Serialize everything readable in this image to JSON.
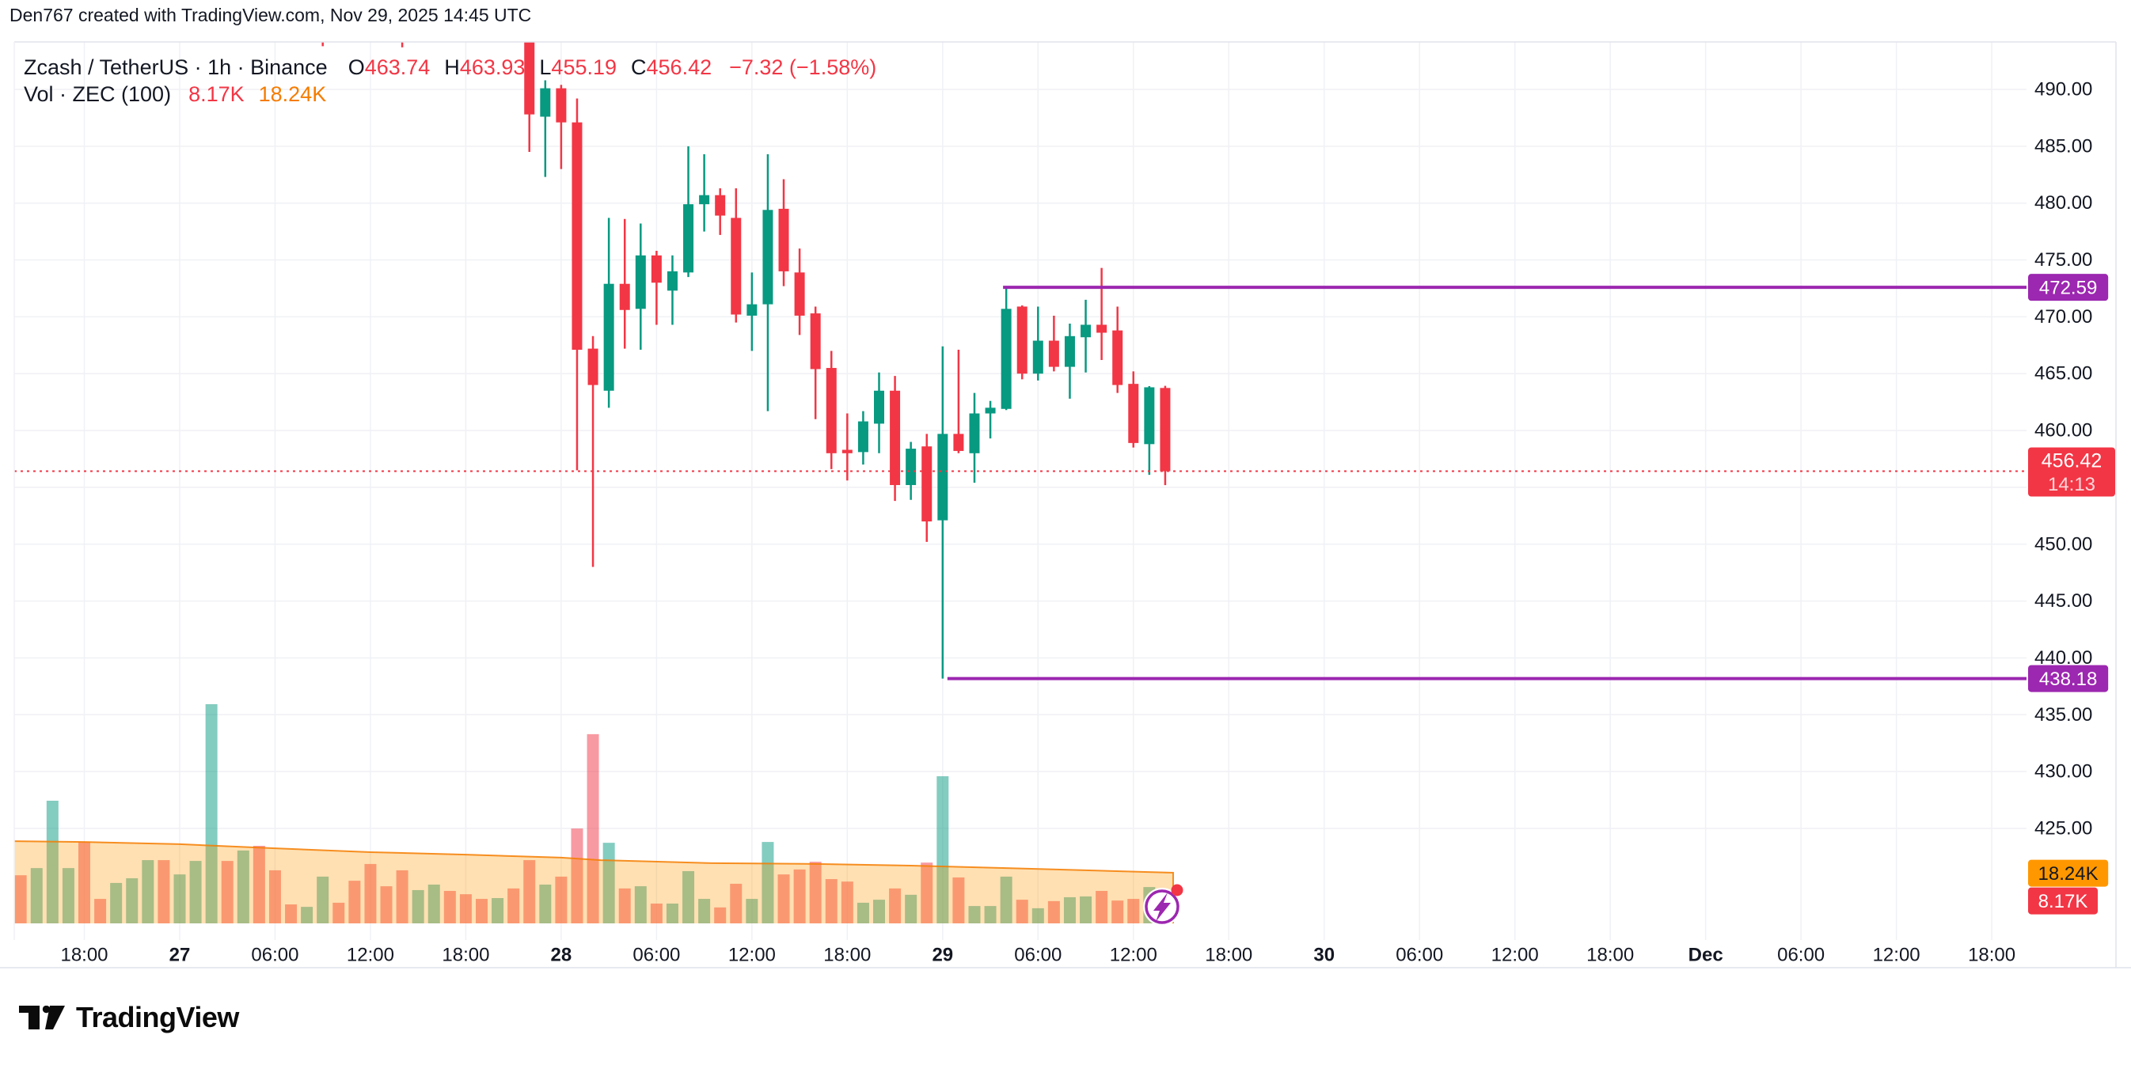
{
  "header": {
    "title": "Den767 created with TradingView.com, Nov 29, 2025 14:45 UTC"
  },
  "legend": {
    "symbol": "Zcash / TetherUS · 1h · Binance",
    "ohlc": [
      {
        "label": "O",
        "value": "463.74"
      },
      {
        "label": "H",
        "value": "463.93"
      },
      {
        "label": "L",
        "value": "455.19"
      },
      {
        "label": "C",
        "value": "456.42"
      }
    ],
    "change": "−7.32 (−1.58%)",
    "volume_label": "Vol · ZEC (100)",
    "volume_current": "8.17K",
    "volume_ma": "18.24K"
  },
  "colors": {
    "up": "#089981",
    "down": "#F23645",
    "level_line": "#9C27B0",
    "vol_ma_line": "#F57C00",
    "vol_ma_fill": "#FF9800",
    "grid": "#F0F1F5",
    "border": "#E0E3EB",
    "axis_text": "#131722",
    "badge_orange": "#FF9800",
    "badge_red": "#F23645",
    "badge_purple": "#9C27B0"
  },
  "chart_data": {
    "type": "candlestick+volume",
    "title": "Zcash / TetherUS · 1h · Binance",
    "candle_format": [
      "hour_from_Nov26_18:00",
      "open",
      "high",
      "low",
      "close"
    ],
    "candles": [
      [
        15,
        497,
        497,
        493.8,
        497
      ],
      [
        20,
        497,
        497,
        493.7,
        497
      ],
      [
        28,
        494.8,
        495.5,
        484.5,
        487.8
      ],
      [
        29,
        487.6,
        490.8,
        482.3,
        490.1
      ],
      [
        30,
        490.1,
        490.4,
        483.0,
        487.1
      ],
      [
        31,
        487.1,
        489.2,
        456.5,
        467.1
      ],
      [
        32,
        467.2,
        468.3,
        448.0,
        464.0
      ],
      [
        33,
        463.5,
        478.7,
        462.0,
        472.9
      ],
      [
        34,
        472.9,
        478.6,
        467.2,
        470.6
      ],
      [
        35,
        470.7,
        478.2,
        467.1,
        475.4
      ],
      [
        36,
        475.4,
        475.8,
        469.3,
        473.0
      ],
      [
        37,
        472.3,
        475.4,
        469.3,
        474.0
      ],
      [
        38,
        473.9,
        485.0,
        473.5,
        479.9
      ],
      [
        39,
        479.9,
        484.3,
        477.5,
        480.7
      ],
      [
        40,
        480.7,
        481.3,
        477.2,
        478.9
      ],
      [
        41,
        478.7,
        481.3,
        469.5,
        470.2
      ],
      [
        42,
        470.1,
        473.9,
        467.0,
        471.1
      ],
      [
        43,
        471.1,
        484.3,
        461.7,
        479.4
      ],
      [
        44,
        479.5,
        482.1,
        472.7,
        474.0
      ],
      [
        45,
        473.9,
        476.0,
        468.4,
        470.1
      ],
      [
        46,
        470.3,
        470.9,
        461.0,
        465.4
      ],
      [
        47,
        465.5,
        467.0,
        456.6,
        458.0
      ],
      [
        48,
        458.3,
        461.5,
        455.6,
        458.0
      ],
      [
        49,
        458.1,
        461.7,
        457.0,
        460.8
      ],
      [
        50,
        460.6,
        465.1,
        458.0,
        463.5
      ],
      [
        51,
        463.5,
        464.8,
        453.8,
        455.2
      ],
      [
        52,
        455.2,
        459.0,
        453.9,
        458.4
      ],
      [
        53,
        458.6,
        459.7,
        450.2,
        452.0
      ],
      [
        54,
        452.1,
        467.4,
        438.18,
        459.7
      ],
      [
        55,
        459.7,
        467.1,
        458.0,
        458.2
      ],
      [
        56,
        458.0,
        463.3,
        455.4,
        461.5
      ],
      [
        57,
        461.5,
        462.6,
        459.3,
        462.0
      ],
      [
        58,
        461.9,
        472.59,
        461.8,
        470.7
      ],
      [
        59,
        470.9,
        471.0,
        464.5,
        465.0
      ],
      [
        60,
        465.0,
        470.9,
        464.4,
        467.9
      ],
      [
        61,
        467.9,
        470.1,
        465.2,
        465.6
      ],
      [
        62,
        465.6,
        469.4,
        462.8,
        468.3
      ],
      [
        63,
        468.2,
        471.5,
        465.1,
        469.3
      ],
      [
        64,
        469.3,
        474.3,
        466.2,
        468.6
      ],
      [
        65,
        468.8,
        470.9,
        463.3,
        464.0
      ],
      [
        66,
        464.1,
        465.2,
        458.5,
        458.9
      ],
      [
        67,
        458.8,
        463.9,
        456.1,
        463.8
      ],
      [
        68,
        463.74,
        463.93,
        455.19,
        456.42
      ]
    ],
    "volume_format": [
      "hour",
      "volume_K",
      "direction"
    ],
    "volume": [
      [
        -4,
        17.5,
        "d"
      ],
      [
        -3,
        20.1,
        "u"
      ],
      [
        -2,
        44.6,
        "u"
      ],
      [
        -1,
        20.1,
        "u"
      ],
      [
        0,
        29.6,
        "d"
      ],
      [
        1,
        8.9,
        "d"
      ],
      [
        2,
        14.7,
        "u"
      ],
      [
        3,
        16.4,
        "u"
      ],
      [
        4,
        23,
        "u"
      ],
      [
        5,
        23,
        "d"
      ],
      [
        6,
        17.8,
        "u"
      ],
      [
        7,
        22.7,
        "u"
      ],
      [
        8,
        79.7,
        "u"
      ],
      [
        9,
        22.7,
        "d"
      ],
      [
        10,
        26.5,
        "u"
      ],
      [
        11,
        28.2,
        "d"
      ],
      [
        12,
        19.3,
        "d"
      ],
      [
        13,
        6.9,
        "d"
      ],
      [
        14,
        6,
        "u"
      ],
      [
        15,
        17,
        "u"
      ],
      [
        16,
        7.5,
        "d"
      ],
      [
        17,
        15.5,
        "d"
      ],
      [
        18,
        21.6,
        "d"
      ],
      [
        19,
        13.5,
        "d"
      ],
      [
        20,
        19.3,
        "d"
      ],
      [
        21,
        12.1,
        "u"
      ],
      [
        22,
        14.1,
        "u"
      ],
      [
        23,
        11.8,
        "d"
      ],
      [
        24,
        10.6,
        "d"
      ],
      [
        25,
        8.9,
        "d"
      ],
      [
        26,
        9.2,
        "u"
      ],
      [
        27,
        12.7,
        "d"
      ],
      [
        28,
        23,
        "d"
      ],
      [
        29,
        14.1,
        "u"
      ],
      [
        30,
        17,
        "d"
      ],
      [
        31,
        34.5,
        "d"
      ],
      [
        32,
        68.8,
        "d"
      ],
      [
        33,
        29.3,
        "u"
      ],
      [
        34,
        12.7,
        "d"
      ],
      [
        35,
        13.5,
        "u"
      ],
      [
        36,
        7.2,
        "d"
      ],
      [
        37,
        7.2,
        "u"
      ],
      [
        38,
        19,
        "u"
      ],
      [
        39,
        8.9,
        "u"
      ],
      [
        40,
        5.8,
        "d"
      ],
      [
        41,
        14.4,
        "d"
      ],
      [
        42,
        8.9,
        "u"
      ],
      [
        43,
        29.6,
        "u"
      ],
      [
        44,
        17.8,
        "d"
      ],
      [
        45,
        19.6,
        "d"
      ],
      [
        46,
        22.4,
        "d"
      ],
      [
        47,
        16.1,
        "d"
      ],
      [
        48,
        15.2,
        "d"
      ],
      [
        49,
        7.5,
        "u"
      ],
      [
        50,
        8.6,
        "u"
      ],
      [
        51,
        12.7,
        "d"
      ],
      [
        52,
        10.4,
        "u"
      ],
      [
        53,
        22.1,
        "d"
      ],
      [
        54,
        53.5,
        "u"
      ],
      [
        55,
        16.7,
        "d"
      ],
      [
        56,
        6.3,
        "u"
      ],
      [
        57,
        6.3,
        "u"
      ],
      [
        58,
        17,
        "u"
      ],
      [
        59,
        8.6,
        "d"
      ],
      [
        60,
        5.5,
        "u"
      ],
      [
        61,
        8.1,
        "d"
      ],
      [
        62,
        9.5,
        "u"
      ],
      [
        63,
        9.8,
        "u"
      ],
      [
        64,
        11.8,
        "d"
      ],
      [
        65,
        8.3,
        "d"
      ],
      [
        66,
        8.9,
        "d"
      ],
      [
        67,
        13.2,
        "u"
      ],
      [
        68,
        8.17,
        "d"
      ]
    ],
    "volume_ma_points": [
      [
        -4.4,
        29.9
      ],
      [
        0,
        29.6
      ],
      [
        6,
        28.8
      ],
      [
        12,
        27.3
      ],
      [
        18,
        25.9
      ],
      [
        24,
        25
      ],
      [
        30,
        23.9
      ],
      [
        32.5,
        23
      ],
      [
        39.5,
        21.9
      ],
      [
        46,
        21.6
      ],
      [
        52,
        21
      ],
      [
        58,
        20.1
      ],
      [
        63,
        19.3
      ],
      [
        68.5,
        18.4
      ]
    ],
    "levels": [
      {
        "price": 472.59,
        "anchor_hour": 57.8
      },
      {
        "price": 438.18,
        "anchor_hour": 54.3
      }
    ],
    "last_price": {
      "value": 456.42,
      "countdown": "14:13"
    },
    "price_axis": {
      "grid_values": [
        490,
        485,
        480,
        475,
        470,
        465,
        460,
        455,
        450,
        445,
        440,
        435,
        430,
        425
      ],
      "ticks": [
        {
          "t": "490.00",
          "v": 490
        },
        {
          "t": "485.00",
          "v": 485
        },
        {
          "t": "480.00",
          "v": 480
        },
        {
          "t": "475.00",
          "v": 475
        },
        {
          "t": "470.00",
          "v": 470
        },
        {
          "t": "465.00",
          "v": 465
        },
        {
          "t": "460.00",
          "v": 460
        },
        {
          "t": "450.00",
          "v": 450
        },
        {
          "t": "445.00",
          "v": 445
        },
        {
          "t": "440.00",
          "v": 440
        },
        {
          "t": "435.00",
          "v": 435
        },
        {
          "t": "430.00",
          "v": 430
        },
        {
          "t": "425.00",
          "v": 425
        }
      ],
      "badges": [
        {
          "kind": "level",
          "text": "472.59",
          "bg": "#9C27B0",
          "fg": "#FFFFFF",
          "price": 472.59
        },
        {
          "kind": "last",
          "lines": [
            "456.42",
            "14:13"
          ],
          "bg": "#F23645",
          "fg": "#FFFFFF",
          "price": 456.42
        },
        {
          "kind": "level",
          "text": "438.18",
          "bg": "#9C27B0",
          "fg": "#FFFFFF",
          "price": 438.18
        },
        {
          "kind": "vol-ma",
          "text": "18.24K",
          "bg": "#FF9800",
          "fg": "#131722",
          "volume": 18.24
        },
        {
          "kind": "vol",
          "text": "8.17K",
          "bg": "#F23645",
          "fg": "#FFFFFF",
          "volume": 8.17
        }
      ]
    },
    "time_axis": {
      "labels": [
        {
          "text": "18:00",
          "hour": 0,
          "bold": false
        },
        {
          "text": "27",
          "hour": 6,
          "bold": true
        },
        {
          "text": "06:00",
          "hour": 12,
          "bold": false
        },
        {
          "text": "12:00",
          "hour": 18,
          "bold": false
        },
        {
          "text": "18:00",
          "hour": 24,
          "bold": false
        },
        {
          "text": "28",
          "hour": 30,
          "bold": true
        },
        {
          "text": "06:00",
          "hour": 36,
          "bold": false
        },
        {
          "text": "12:00",
          "hour": 42,
          "bold": false
        },
        {
          "text": "18:00",
          "hour": 48,
          "bold": false
        },
        {
          "text": "29",
          "hour": 54,
          "bold": true
        },
        {
          "text": "06:00",
          "hour": 60,
          "bold": false
        },
        {
          "text": "12:00",
          "hour": 66,
          "bold": false
        },
        {
          "text": "18:00",
          "hour": 72,
          "bold": false
        },
        {
          "text": "30",
          "hour": 78,
          "bold": true
        },
        {
          "text": "06:00",
          "hour": 84,
          "bold": false
        },
        {
          "text": "12:00",
          "hour": 90,
          "bold": false
        },
        {
          "text": "18:00",
          "hour": 96,
          "bold": false
        },
        {
          "text": "Dec",
          "hour": 102,
          "bold": true
        },
        {
          "text": "06:00",
          "hour": 108,
          "bold": false
        },
        {
          "text": "12:00",
          "hour": 114,
          "bold": false
        },
        {
          "text": "18:00",
          "hour": 120,
          "bold": false
        }
      ]
    }
  },
  "footer": {
    "brand": "TradingView"
  }
}
